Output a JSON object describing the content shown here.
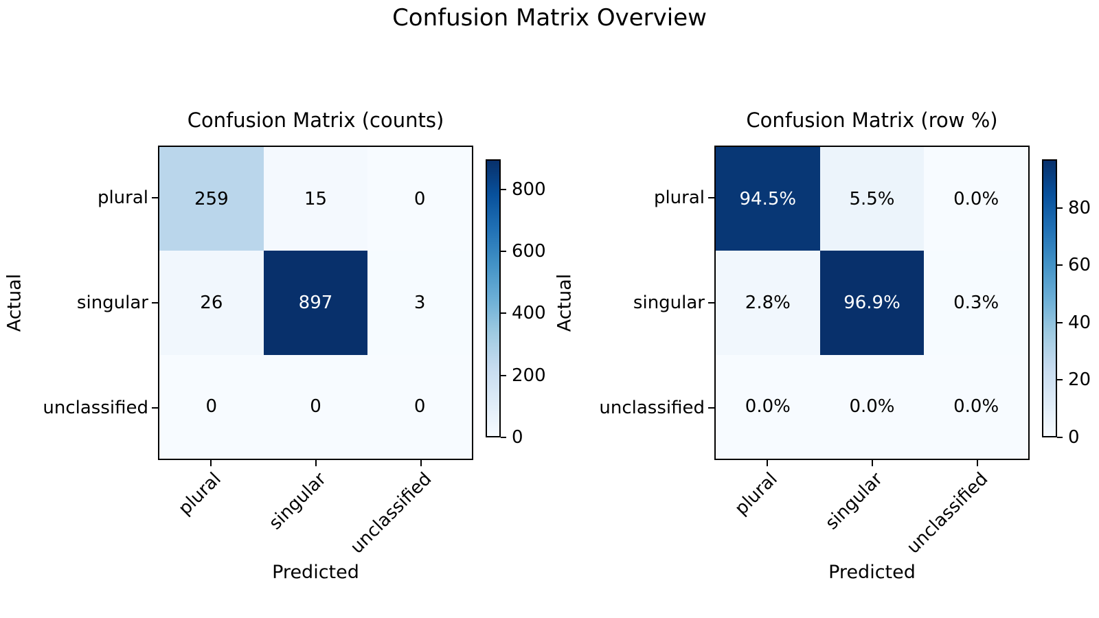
{
  "figure": {
    "title": "Confusion Matrix Overview",
    "background_color": "#ffffff",
    "text_color": "#000000"
  },
  "colors": {
    "colormap_name": "Blues",
    "colormap_stops": [
      "#f7fbff",
      "#deebf7",
      "#c6dbef",
      "#9ecae1",
      "#6baed6",
      "#4292c6",
      "#2171b5",
      "#08519c",
      "#08306b"
    ],
    "axes_border": "#000000",
    "annotation_dark_text": "#000000",
    "annotation_light_text": "#ffffff"
  },
  "chart_data": [
    {
      "type": "heatmap",
      "title": "Confusion Matrix (counts)",
      "xlabel": "Predicted",
      "ylabel": "Actual",
      "x_categories": [
        "plural",
        "singular",
        "unclassified"
      ],
      "y_categories": [
        "plural",
        "singular",
        "unclassified"
      ],
      "values": [
        [
          259,
          15,
          0
        ],
        [
          26,
          897,
          3
        ],
        [
          0,
          0,
          0
        ]
      ],
      "cell_labels": [
        [
          "259",
          "15",
          "0"
        ],
        [
          "26",
          "897",
          "3"
        ],
        [
          "0",
          "0",
          "0"
        ]
      ],
      "vmin": 0,
      "vmax": 897,
      "colormap": "Blues",
      "grid": false,
      "colorbar": {
        "ticks": [
          0,
          200,
          400,
          600,
          800
        ],
        "tick_labels": [
          "0",
          "200",
          "400",
          "600",
          "800"
        ]
      }
    },
    {
      "type": "heatmap",
      "title": "Confusion Matrix (row %)",
      "xlabel": "Predicted",
      "ylabel": "Actual",
      "x_categories": [
        "plural",
        "singular",
        "unclassified"
      ],
      "y_categories": [
        "plural",
        "singular",
        "unclassified"
      ],
      "values": [
        [
          94.5,
          5.5,
          0.0
        ],
        [
          2.8,
          96.9,
          0.3
        ],
        [
          0.0,
          0.0,
          0.0
        ]
      ],
      "cell_labels": [
        [
          "94.5%",
          "5.5%",
          "0.0%"
        ],
        [
          "2.8%",
          "96.9%",
          "0.3%"
        ],
        [
          "0.0%",
          "0.0%",
          "0.0%"
        ]
      ],
      "vmin": 0,
      "vmax": 96.9,
      "colormap": "Blues",
      "grid": false,
      "colorbar": {
        "ticks": [
          0,
          20,
          40,
          60,
          80
        ],
        "tick_labels": [
          "0",
          "20",
          "40",
          "60",
          "80"
        ]
      }
    }
  ]
}
